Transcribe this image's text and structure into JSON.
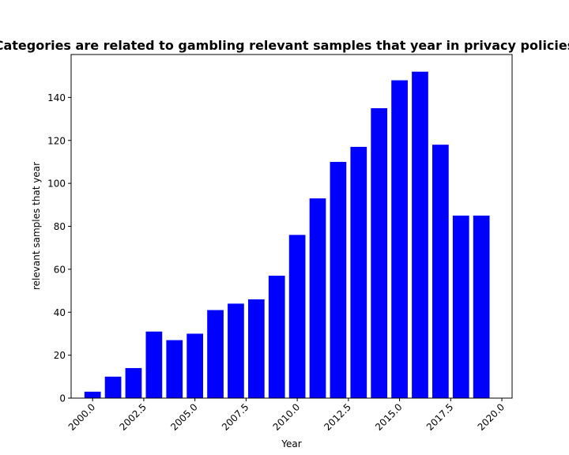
{
  "chart_data": {
    "type": "bar",
    "title": "Categories are related to gambling relevant samples that year in privacy policies",
    "xlabel": "Year",
    "ylabel": "relevant samples that year",
    "x": [
      2000,
      2001,
      2002,
      2003,
      2004,
      2005,
      2006,
      2007,
      2008,
      2009,
      2010,
      2011,
      2012,
      2013,
      2014,
      2015,
      2016,
      2017,
      2018,
      2019
    ],
    "values": [
      3,
      10,
      14,
      31,
      27,
      30,
      41,
      44,
      46,
      57,
      76,
      93,
      110,
      117,
      135,
      148,
      152,
      118,
      85,
      85
    ],
    "bar_color": "#0000ff",
    "xlim": [
      1998.95,
      2020.5
    ],
    "ylim": [
      0,
      160
    ],
    "xticks": [
      2000.0,
      2002.5,
      2005.0,
      2007.5,
      2010.0,
      2012.5,
      2015.0,
      2017.5,
      2020.0
    ],
    "xtick_labels": [
      "2000.0",
      "2002.5",
      "2005.0",
      "2007.5",
      "2010.0",
      "2012.5",
      "2015.0",
      "2017.5",
      "2020.0"
    ],
    "yticks": [
      0,
      20,
      40,
      60,
      80,
      100,
      120,
      140
    ],
    "ytick_labels": [
      "0",
      "20",
      "40",
      "60",
      "80",
      "100",
      "120",
      "140"
    ],
    "grid": false,
    "legend": false
  }
}
